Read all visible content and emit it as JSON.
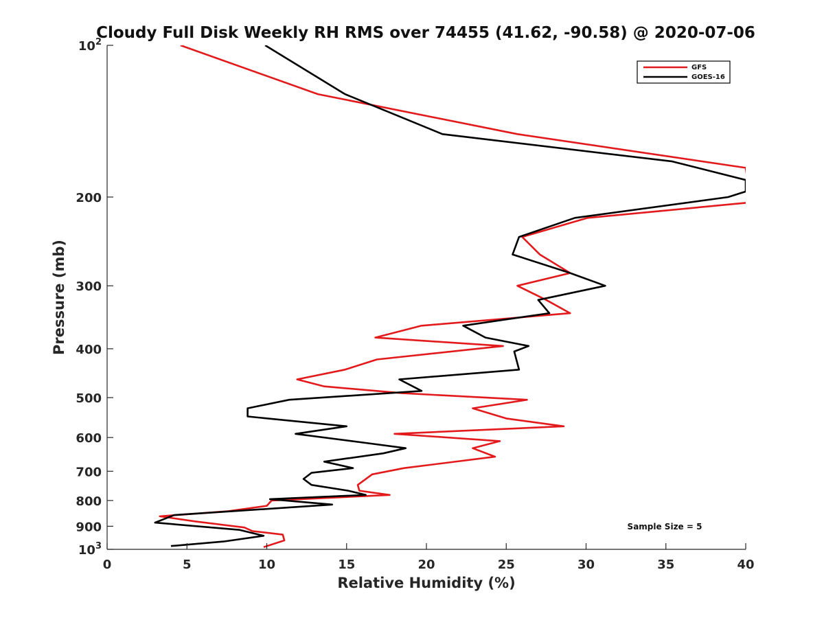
{
  "chart_data": {
    "type": "line",
    "title": "Cloudy Full Disk Weekly RH RMS over 74455 (41.62, -90.58) @ 2020-07-06",
    "xlabel": "Relative Humidity (%)",
    "ylabel": "Pressure (mb)",
    "xlim": [
      0,
      40
    ],
    "ylim": [
      100,
      1000
    ],
    "yscale": "log",
    "yreversed": true,
    "grid": false,
    "legend_position": "top-right",
    "xticks": [
      0,
      5,
      10,
      15,
      20,
      25,
      30,
      35,
      40
    ],
    "yticks": [
      {
        "value": 100,
        "label": "10",
        "sup": "2"
      },
      {
        "value": 200,
        "label": "200",
        "sup": ""
      },
      {
        "value": 300,
        "label": "300",
        "sup": ""
      },
      {
        "value": 400,
        "label": "400",
        "sup": ""
      },
      {
        "value": 500,
        "label": "500",
        "sup": ""
      },
      {
        "value": 600,
        "label": "600",
        "sup": ""
      },
      {
        "value": 700,
        "label": "700",
        "sup": ""
      },
      {
        "value": 800,
        "label": "800",
        "sup": ""
      },
      {
        "value": 900,
        "label": "900",
        "sup": ""
      },
      {
        "value": 1000,
        "label": "10",
        "sup": "3"
      }
    ],
    "annotation": "Sample Size = 5",
    "series": [
      {
        "name": "GFS",
        "color": "#e31a1c",
        "points": [
          [
            4.6,
            100
          ],
          [
            13.2,
            125
          ],
          [
            25.7,
            150
          ],
          [
            40.0,
            175
          ],
          [
            40.3,
            205
          ],
          [
            30.1,
            220
          ],
          [
            26.0,
            240
          ],
          [
            27.1,
            260
          ],
          [
            29.0,
            283
          ],
          [
            25.7,
            300
          ],
          [
            27.5,
            320
          ],
          [
            29.0,
            340
          ],
          [
            19.7,
            360
          ],
          [
            16.8,
            380
          ],
          [
            24.8,
            395
          ],
          [
            16.9,
            420
          ],
          [
            14.9,
            440
          ],
          [
            11.9,
            460
          ],
          [
            13.6,
            475
          ],
          [
            18.5,
            490
          ],
          [
            26.3,
            505
          ],
          [
            22.9,
            525
          ],
          [
            25.0,
            550
          ],
          [
            28.6,
            570
          ],
          [
            18.0,
            590
          ],
          [
            24.6,
            610
          ],
          [
            22.9,
            630
          ],
          [
            24.3,
            655
          ],
          [
            18.6,
            690
          ],
          [
            16.6,
            710
          ],
          [
            15.7,
            745
          ],
          [
            15.8,
            765
          ],
          [
            17.7,
            780
          ],
          [
            10.3,
            800
          ],
          [
            10.0,
            820
          ],
          [
            7.6,
            840
          ],
          [
            3.3,
            860
          ],
          [
            5.5,
            880
          ],
          [
            8.6,
            905
          ],
          [
            9.1,
            920
          ],
          [
            11.0,
            935
          ],
          [
            11.1,
            960
          ],
          [
            9.8,
            990
          ]
        ]
      },
      {
        "name": "GOES-16",
        "color": "#000000",
        "points": [
          [
            9.9,
            100
          ],
          [
            14.9,
            125
          ],
          [
            21.0,
            150
          ],
          [
            35.4,
            170
          ],
          [
            40.0,
            185
          ],
          [
            40.0,
            195
          ],
          [
            38.9,
            200
          ],
          [
            29.3,
            220
          ],
          [
            25.8,
            240
          ],
          [
            25.4,
            260
          ],
          [
            29.0,
            283
          ],
          [
            31.2,
            300
          ],
          [
            27.0,
            320
          ],
          [
            27.7,
            340
          ],
          [
            22.3,
            360
          ],
          [
            23.7,
            380
          ],
          [
            26.4,
            395
          ],
          [
            25.5,
            405
          ],
          [
            25.8,
            440
          ],
          [
            18.3,
            460
          ],
          [
            19.7,
            485
          ],
          [
            11.4,
            505
          ],
          [
            8.8,
            525
          ],
          [
            8.8,
            545
          ],
          [
            15.0,
            570
          ],
          [
            11.8,
            590
          ],
          [
            16.2,
            615
          ],
          [
            18.7,
            630
          ],
          [
            17.3,
            645
          ],
          [
            13.6,
            670
          ],
          [
            15.4,
            690
          ],
          [
            12.8,
            705
          ],
          [
            12.3,
            725
          ],
          [
            12.8,
            745
          ],
          [
            15.1,
            765
          ],
          [
            16.2,
            780
          ],
          [
            10.2,
            795
          ],
          [
            14.1,
            815
          ],
          [
            4.2,
            855
          ],
          [
            3.0,
            885
          ],
          [
            8.3,
            915
          ],
          [
            9.8,
            940
          ],
          [
            7.3,
            965
          ],
          [
            4.0,
            985
          ]
        ]
      }
    ]
  }
}
